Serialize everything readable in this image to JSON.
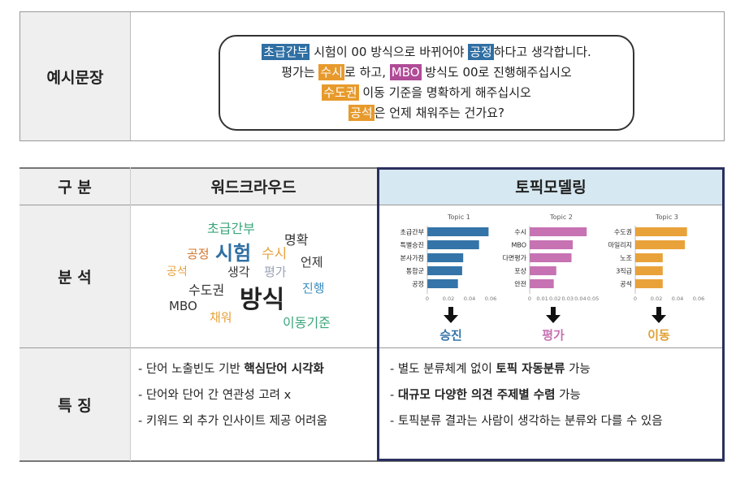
{
  "example": {
    "header": "예시문장",
    "lines": [
      [
        {
          "t": "초급간부",
          "hl": "blue"
        },
        {
          "t": " 시험이 00 방식으로 바뀌어야 "
        },
        {
          "t": "공정",
          "hl": "blue"
        },
        {
          "t": "하다고 생각합니다."
        }
      ],
      [
        {
          "t": "평가는 "
        },
        {
          "t": "수시",
          "hl": "orange"
        },
        {
          "t": "로 하고, "
        },
        {
          "t": "MBO",
          "hl": "purple"
        },
        {
          "t": " 방식도 00로 진행해주십시오"
        }
      ],
      [
        {
          "t": "수도권",
          "hl": "orange"
        },
        {
          "t": " 이동 기준을 명확하게 해주십시오"
        }
      ],
      [
        {
          "t": "공석",
          "hl": "orange"
        },
        {
          "t": "은 언제 채워주는 건가요?"
        }
      ]
    ]
  },
  "table": {
    "col_header": "구  분",
    "wordcloud_header": "워드크라우드",
    "topic_header": "토픽모델링",
    "row_analysis": "분 석",
    "row_features": "특 징"
  },
  "wordcloud": [
    {
      "text": "초급간부",
      "color": "#3aa57a",
      "size": 16
    },
    {
      "text": "명확",
      "color": "#333333",
      "size": 16
    },
    {
      "text": "공정",
      "color": "#d4742a",
      "size": 15
    },
    {
      "text": "시험",
      "color": "#2f6fa3",
      "size": 24
    },
    {
      "text": "수시",
      "color": "#e7a23b",
      "size": 17
    },
    {
      "text": "언제",
      "color": "#333333",
      "size": 15
    },
    {
      "text": "공석",
      "color": "#e7a23b",
      "size": 14
    },
    {
      "text": "생각",
      "color": "#333333",
      "size": 15
    },
    {
      "text": "평가",
      "color": "#9aa3b5",
      "size": 15
    },
    {
      "text": "수도권",
      "color": "#333333",
      "size": 16
    },
    {
      "text": "방식",
      "color": "#222222",
      "size": 30
    },
    {
      "text": "진행",
      "color": "#3f8fbf",
      "size": 15
    },
    {
      "text": "MBO",
      "color": "#333333",
      "size": 15
    },
    {
      "text": "채워",
      "color": "#e7a23b",
      "size": 15
    },
    {
      "text": "이동기준",
      "color": "#3aa57a",
      "size": 16
    }
  ],
  "chart_data": [
    {
      "type": "bar",
      "title": "Topic 1",
      "color": "#3474a8",
      "categories": [
        "초급간부",
        "특별승진",
        "본사가점",
        "통합군",
        "공정"
      ],
      "values": [
        0.058,
        0.049,
        0.034,
        0.033,
        0.029
      ],
      "xlim": [
        0,
        0.06
      ],
      "ticks": [
        "0",
        "0.02",
        "0.04",
        "0.06"
      ],
      "result": "승진",
      "result_color": "#3474a8"
    },
    {
      "type": "bar",
      "title": "Topic 2",
      "color": "#c772b3",
      "categories": [
        "수시",
        "MBO",
        "다면평가",
        "포상",
        "안전"
      ],
      "values": [
        0.045,
        0.034,
        0.033,
        0.021,
        0.019
      ],
      "xlim": [
        0,
        0.05
      ],
      "ticks": [
        "0",
        "0.01",
        "0.02",
        "0.03",
        "0.04",
        "0.05"
      ],
      "result": "평가",
      "result_color": "#c772b3"
    },
    {
      "type": "bar",
      "title": "Topic 3",
      "color": "#e9a23a",
      "categories": [
        "수도권",
        "마일리지",
        "노조",
        "3직급",
        "공석"
      ],
      "values": [
        0.049,
        0.047,
        0.026,
        0.026,
        0.026
      ],
      "xlim": [
        0,
        0.06
      ],
      "ticks": [
        "0",
        "0.02",
        "0.04",
        "0.06"
      ],
      "result": "이동",
      "result_color": "#e0a030"
    }
  ],
  "features": {
    "wordcloud": [
      [
        {
          "t": "- 단어 노출빈도 기반 "
        },
        {
          "t": "핵심단어 시각화",
          "b": true
        }
      ],
      [
        {
          "t": "- 단어와 단어 간 연관성 고려 x"
        }
      ],
      [
        {
          "t": "- 키워드 외 추가 인사이트 제공 어려움"
        }
      ]
    ],
    "topic": [
      [
        {
          "t": "- 별도 분류체계 없이 "
        },
        {
          "t": "토픽 자동분류",
          "b": true
        },
        {
          "t": " 가능"
        }
      ],
      [
        {
          "t": "- "
        },
        {
          "t": "대규모 다양한 의견 주제별 수렴",
          "b": true
        },
        {
          "t": " 가능"
        }
      ],
      [
        {
          "t": "- 토픽분류 결과는 사람이 생각하는 분류와 다를 수 있음"
        }
      ]
    ]
  }
}
